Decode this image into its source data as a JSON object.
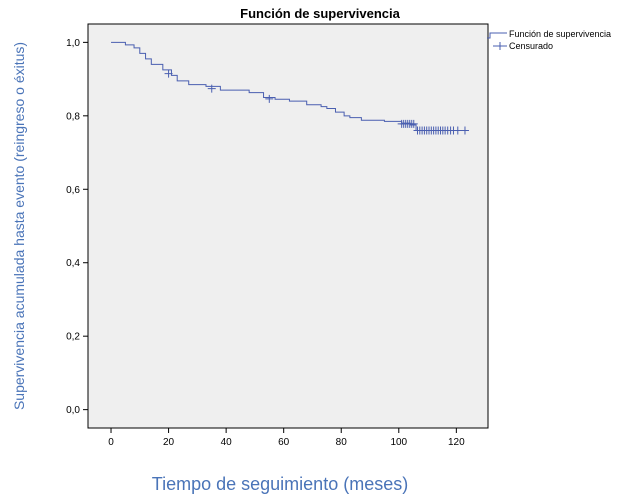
{
  "chart_data": {
    "type": "line",
    "title": "Función de supervivencia",
    "xlabel": "Tiempo de seguimiento (meses)",
    "ylabel": "Supervivencia acumulada hasta evento (reingreso o éxitus)",
    "xlim": [
      -8,
      131
    ],
    "ylim": [
      -0.05,
      1.05
    ],
    "x_ticks": [
      0,
      20,
      40,
      60,
      80,
      100,
      120
    ],
    "y_ticks": [
      0.0,
      0.2,
      0.4,
      0.6,
      0.8,
      1.0
    ],
    "y_tick_labels": [
      "0,0",
      "0,2",
      "0,4",
      "0,6",
      "0,8",
      "1,0"
    ],
    "grid": false,
    "legend_position": "top-right",
    "series": [
      {
        "name": "Función de supervivencia",
        "color": "#4a5fb0",
        "x": [
          0,
          5,
          8,
          10,
          12,
          14,
          18,
          21,
          23,
          27,
          33,
          38,
          48,
          53,
          57,
          62,
          68,
          73,
          75,
          78,
          81,
          83,
          87,
          95,
          101,
          104,
          106,
          123
        ],
        "y": [
          1.0,
          0.993,
          0.985,
          0.97,
          0.955,
          0.94,
          0.925,
          0.91,
          0.895,
          0.885,
          0.88,
          0.87,
          0.863,
          0.85,
          0.845,
          0.84,
          0.83,
          0.825,
          0.82,
          0.81,
          0.8,
          0.795,
          0.788,
          0.785,
          0.78,
          0.775,
          0.76,
          0.76
        ]
      },
      {
        "name": "Censurado",
        "color": "#4a5fb0",
        "x": [
          20,
          35,
          55,
          101,
          101.7,
          102.4,
          103.1,
          103.8,
          104.5,
          105.2,
          106.5,
          107.3,
          108.1,
          108.9,
          109.7,
          110.5,
          111.3,
          112.1,
          112.9,
          113.7,
          114.5,
          115.3,
          116.1,
          117,
          118,
          119,
          120.5,
          123
        ],
        "y": [
          0.915,
          0.874,
          0.846,
          0.778,
          0.778,
          0.778,
          0.778,
          0.778,
          0.778,
          0.778,
          0.76,
          0.76,
          0.76,
          0.76,
          0.76,
          0.76,
          0.76,
          0.76,
          0.76,
          0.76,
          0.76,
          0.76,
          0.76,
          0.76,
          0.76,
          0.76,
          0.76,
          0.76
        ]
      }
    ]
  }
}
